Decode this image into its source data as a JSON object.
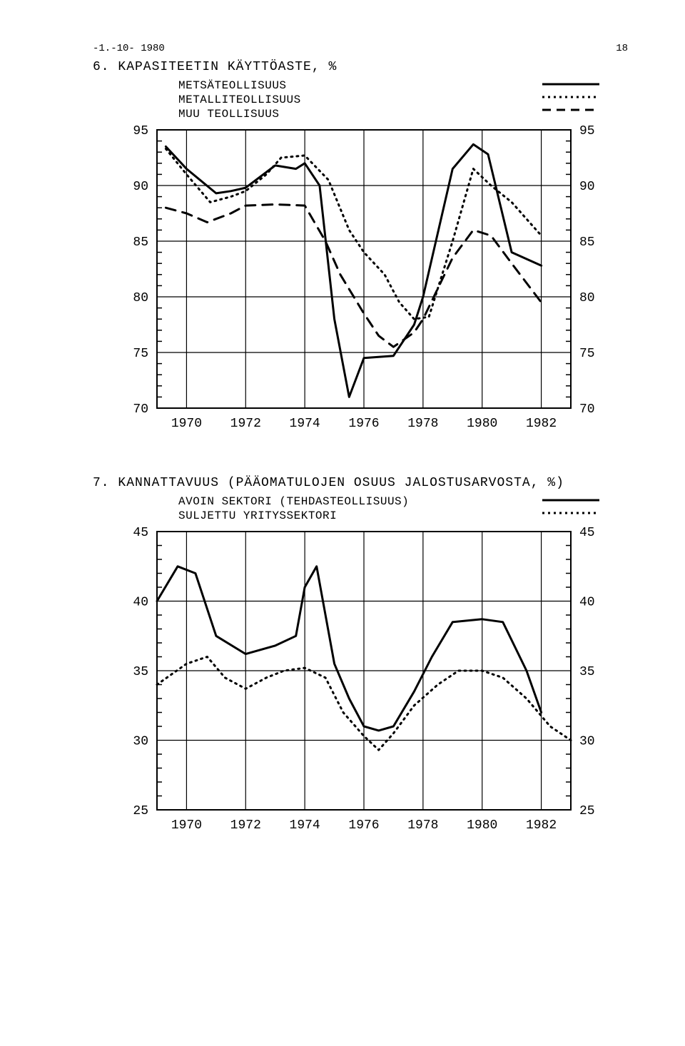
{
  "document": {
    "date_stamp": "-1.-10- 1980",
    "page_number": "18"
  },
  "chart6": {
    "title": "6. KAPASITEETIN KÄYTTÖASTE, %",
    "type": "line",
    "legend": {
      "metsa": "METSÄTEOLLISUUS",
      "metalli": "METALLITEOLLISUUS",
      "muu": "MUU TEOLLISUUS"
    },
    "x_years": [
      1970,
      1972,
      1974,
      1976,
      1978,
      1980,
      1982
    ],
    "x_domain": [
      1969,
      1983
    ],
    "y_domain": [
      70,
      95
    ],
    "y_ticks": [
      70,
      75,
      80,
      85,
      90,
      95
    ],
    "colors": {
      "stroke": "#000000",
      "grid": "#000000",
      "bg": "#ffffff"
    },
    "line_width_main": 3.0,
    "line_width_grid": 1.2,
    "tick_font_size": 18,
    "series": {
      "metsa": {
        "style": "solid",
        "points": [
          [
            1969.3,
            93.5
          ],
          [
            1970.0,
            91.5
          ],
          [
            1971.0,
            89.3
          ],
          [
            1971.5,
            89.5
          ],
          [
            1972.0,
            89.8
          ],
          [
            1973.0,
            91.8
          ],
          [
            1973.7,
            91.5
          ],
          [
            1974.0,
            92.0
          ],
          [
            1974.5,
            90.0
          ],
          [
            1975.0,
            78.0
          ],
          [
            1975.5,
            71.0
          ],
          [
            1976.0,
            74.5
          ],
          [
            1977.0,
            74.7
          ],
          [
            1977.7,
            77.5
          ],
          [
            1978.0,
            80.0
          ],
          [
            1979.0,
            91.5
          ],
          [
            1979.7,
            93.7
          ],
          [
            1980.2,
            92.8
          ],
          [
            1981.0,
            84.0
          ],
          [
            1982.0,
            82.8
          ]
        ]
      },
      "metalli": {
        "style": "dotted",
        "points": [
          [
            1969.3,
            93.3
          ],
          [
            1970.0,
            91.0
          ],
          [
            1970.8,
            88.5
          ],
          [
            1971.5,
            89.0
          ],
          [
            1972.0,
            89.5
          ],
          [
            1972.7,
            91.0
          ],
          [
            1973.2,
            92.5
          ],
          [
            1974.0,
            92.7
          ],
          [
            1974.8,
            90.5
          ],
          [
            1975.5,
            86.0
          ],
          [
            1976.0,
            84.0
          ],
          [
            1976.7,
            82.0
          ],
          [
            1977.2,
            79.5
          ],
          [
            1977.7,
            78.0
          ],
          [
            1978.2,
            78.2
          ],
          [
            1979.0,
            85.0
          ],
          [
            1979.7,
            91.5
          ],
          [
            1980.3,
            90.0
          ],
          [
            1981.0,
            88.5
          ],
          [
            1982.0,
            85.5
          ]
        ]
      },
      "muu": {
        "style": "dashed",
        "points": [
          [
            1969.3,
            88.0
          ],
          [
            1970.0,
            87.5
          ],
          [
            1970.7,
            86.7
          ],
          [
            1971.5,
            87.5
          ],
          [
            1972.0,
            88.2
          ],
          [
            1973.0,
            88.3
          ],
          [
            1974.0,
            88.2
          ],
          [
            1974.7,
            85.0
          ],
          [
            1975.2,
            82.0
          ],
          [
            1976.0,
            78.5
          ],
          [
            1976.5,
            76.5
          ],
          [
            1977.0,
            75.5
          ],
          [
            1977.7,
            76.8
          ],
          [
            1978.0,
            78.0
          ],
          [
            1979.0,
            83.5
          ],
          [
            1979.7,
            86.0
          ],
          [
            1980.3,
            85.5
          ],
          [
            1981.0,
            83.0
          ],
          [
            1982.0,
            79.5
          ]
        ]
      }
    }
  },
  "chart7": {
    "title": "7. KANNATTAVUUS (PÄÄOMATULOJEN OSUUS JALOSTUSARVOSTA, %)",
    "type": "line",
    "legend": {
      "avoin": "AVOIN SEKTORI (TEHDASTEOLLISUUS)",
      "suljettu": "SULJETTU YRITYSSEKTORI"
    },
    "x_years": [
      1970,
      1972,
      1974,
      1976,
      1978,
      1980,
      1982
    ],
    "x_domain": [
      1969,
      1983
    ],
    "y_domain": [
      25,
      45
    ],
    "y_ticks": [
      25,
      30,
      35,
      40,
      45
    ],
    "colors": {
      "stroke": "#000000",
      "grid": "#000000",
      "bg": "#ffffff"
    },
    "line_width_main": 3.0,
    "line_width_grid": 1.2,
    "tick_font_size": 18,
    "series": {
      "avoin": {
        "style": "solid",
        "points": [
          [
            1969.0,
            40.0
          ],
          [
            1969.7,
            42.5
          ],
          [
            1970.3,
            42.0
          ],
          [
            1971.0,
            37.5
          ],
          [
            1972.0,
            36.2
          ],
          [
            1973.0,
            36.8
          ],
          [
            1973.7,
            37.5
          ],
          [
            1974.0,
            41.0
          ],
          [
            1974.4,
            42.5
          ],
          [
            1975.0,
            35.5
          ],
          [
            1975.5,
            33.0
          ],
          [
            1976.0,
            31.0
          ],
          [
            1976.5,
            30.7
          ],
          [
            1977.0,
            31.0
          ],
          [
            1977.7,
            33.5
          ],
          [
            1978.3,
            36.0
          ],
          [
            1979.0,
            38.5
          ],
          [
            1980.0,
            38.7
          ],
          [
            1980.7,
            38.5
          ],
          [
            1981.5,
            35.0
          ],
          [
            1982.0,
            32.0
          ]
        ]
      },
      "suljettu": {
        "style": "dotted",
        "points": [
          [
            1969.0,
            34.0
          ],
          [
            1970.0,
            35.5
          ],
          [
            1970.7,
            36.0
          ],
          [
            1971.3,
            34.5
          ],
          [
            1972.0,
            33.7
          ],
          [
            1972.7,
            34.5
          ],
          [
            1973.3,
            35.0
          ],
          [
            1974.0,
            35.2
          ],
          [
            1974.7,
            34.5
          ],
          [
            1975.3,
            32.0
          ],
          [
            1976.0,
            30.3
          ],
          [
            1976.5,
            29.3
          ],
          [
            1977.0,
            30.5
          ],
          [
            1977.7,
            32.5
          ],
          [
            1978.5,
            34.0
          ],
          [
            1979.2,
            35.0
          ],
          [
            1980.0,
            35.0
          ],
          [
            1980.7,
            34.5
          ],
          [
            1981.5,
            33.0
          ],
          [
            1982.3,
            31.0
          ],
          [
            1983.0,
            30.0
          ]
        ]
      }
    }
  }
}
